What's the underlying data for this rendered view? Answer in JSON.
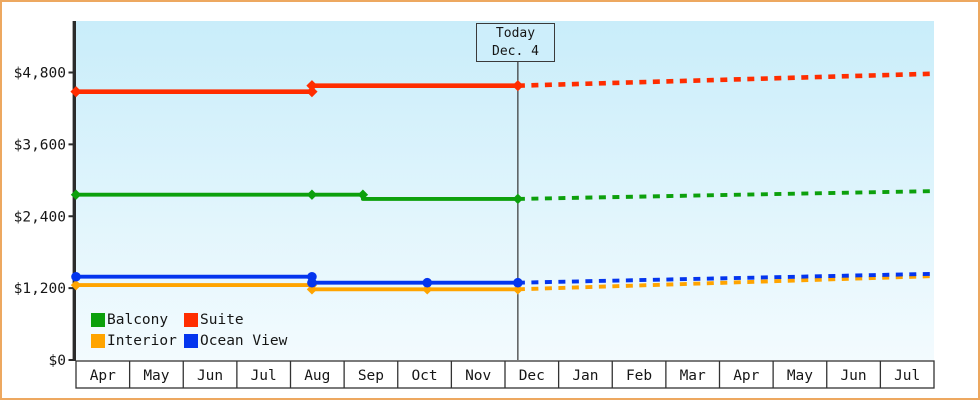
{
  "frame": {
    "border_color": "#eda860",
    "background_color": "#ffffff"
  },
  "today_annotation": {
    "line1": "Today",
    "line2": "Dec. 4"
  },
  "legend": {
    "items": [
      {
        "label": "Balcony",
        "color": "#0ca00c"
      },
      {
        "label": "Suite",
        "color": "#ff2d00"
      },
      {
        "label": "Interior",
        "color": "#ffa400"
      },
      {
        "label": "Ocean View",
        "color": "#0435ee"
      }
    ]
  },
  "chart_data": {
    "type": "line",
    "title": "",
    "xlabel": "",
    "ylabel": "",
    "x_axis": {
      "unit": "months_from_april",
      "labels": [
        "Apr",
        "May",
        "Jun",
        "Jul",
        "Aug",
        "Sep",
        "Oct",
        "Nov",
        "Dec",
        "Jan",
        "Feb",
        "Mar",
        "Apr",
        "May",
        "Jun",
        "Jul"
      ],
      "range": [
        0,
        16
      ]
    },
    "y_axis": {
      "tick_values": [
        0,
        1200,
        2400,
        3600,
        4800
      ],
      "tick_labels": [
        "$0",
        "$1,200",
        "$2,400",
        "$3,600",
        "$4,800"
      ],
      "range": [
        0,
        5660
      ],
      "grid": false
    },
    "today": {
      "label": [
        "Today",
        "Dec. 4"
      ],
      "x": 8.24
    },
    "plot_background": {
      "gradient_top": "#c9edfa",
      "gradient_bottom": "#f3fbfe"
    },
    "axis_color": "#2b2b2b",
    "series": [
      {
        "name": "Balcony",
        "color": "#0ca00c",
        "marker": "diamond",
        "solid_points": [
          [
            0,
            2760
          ],
          [
            4.4,
            2760
          ],
          [
            5.35,
            2760
          ],
          [
            5.35,
            2690
          ],
          [
            8.24,
            2690
          ]
        ],
        "dotted_points": [
          [
            8.24,
            2690
          ],
          [
            16,
            2820
          ]
        ],
        "markers": [
          [
            0,
            2760
          ],
          [
            4.4,
            2760
          ],
          [
            5.35,
            2760
          ],
          [
            8.24,
            2690
          ]
        ]
      },
      {
        "name": "Suite",
        "color": "#ff2d00",
        "marker": "diamond",
        "solid_points": [
          [
            0,
            4480
          ],
          [
            4.4,
            4480
          ],
          [
            4.4,
            4580
          ],
          [
            8.24,
            4580
          ]
        ],
        "dotted_points": [
          [
            8.24,
            4580
          ],
          [
            16,
            4780
          ]
        ],
        "markers": [
          [
            0,
            4480
          ],
          [
            4.4,
            4480
          ],
          [
            4.4,
            4580
          ],
          [
            8.24,
            4580
          ]
        ]
      },
      {
        "name": "Interior",
        "color": "#ffa400",
        "marker": "diamond",
        "solid_points": [
          [
            0,
            1250
          ],
          [
            4.4,
            1250
          ],
          [
            4.4,
            1180
          ],
          [
            6.55,
            1180
          ],
          [
            8.24,
            1180
          ]
        ],
        "dotted_points": [
          [
            8.24,
            1180
          ],
          [
            16,
            1400
          ]
        ],
        "markers": [
          [
            0,
            1250
          ],
          [
            4.4,
            1250
          ],
          [
            4.4,
            1180
          ],
          [
            6.55,
            1180
          ],
          [
            8.24,
            1180
          ]
        ]
      },
      {
        "name": "Ocean View",
        "color": "#0435ee",
        "marker": "circle",
        "solid_points": [
          [
            0,
            1390
          ],
          [
            4.4,
            1390
          ],
          [
            4.4,
            1290
          ],
          [
            6.55,
            1290
          ],
          [
            8.24,
            1290
          ]
        ],
        "dotted_points": [
          [
            8.24,
            1290
          ],
          [
            16,
            1440
          ]
        ],
        "markers": [
          [
            0,
            1390
          ],
          [
            4.4,
            1390
          ],
          [
            4.4,
            1290
          ],
          [
            6.55,
            1290
          ],
          [
            8.24,
            1290
          ]
        ]
      }
    ]
  }
}
